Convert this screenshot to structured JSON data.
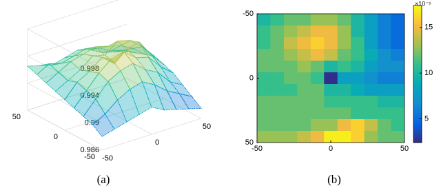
{
  "chart_data": [
    {
      "type": "surface",
      "caption": "(a)",
      "xlim": [
        -50,
        50
      ],
      "xticks": [
        -50,
        0,
        50
      ],
      "ylim": [
        -50,
        50
      ],
      "yticks": [
        -50,
        0,
        50
      ],
      "zlim": [
        0.986,
        0.998
      ],
      "zticks": [
        0.986,
        0.99,
        0.994,
        0.998
      ],
      "grid": true,
      "z": [
        [
          0.988,
          0.9885,
          0.989,
          0.9895,
          0.99,
          0.989,
          0.9885,
          0.988,
          0.9875
        ],
        [
          0.989,
          0.99,
          0.9915,
          0.9925,
          0.993,
          0.992,
          0.9905,
          0.9895,
          0.9885
        ],
        [
          0.9895,
          0.9915,
          0.9935,
          0.9945,
          0.995,
          0.9935,
          0.9925,
          0.9905,
          0.9895
        ],
        [
          0.99,
          0.992,
          0.994,
          0.9955,
          0.996,
          0.9945,
          0.994,
          0.992,
          0.9905
        ],
        [
          0.9905,
          0.9925,
          0.9935,
          0.995,
          0.9935,
          0.995,
          0.9955,
          0.993,
          0.991
        ],
        [
          0.991,
          0.992,
          0.993,
          0.9945,
          0.994,
          0.9955,
          0.995,
          0.9935,
          0.9915
        ],
        [
          0.9915,
          0.9925,
          0.9935,
          0.994,
          0.9945,
          0.994,
          0.9935,
          0.9925,
          0.991
        ],
        [
          0.992,
          0.993,
          0.9925,
          0.993,
          0.9935,
          0.993,
          0.992,
          0.9915,
          0.9905
        ],
        [
          0.9925,
          0.992,
          0.9915,
          0.992,
          0.9925,
          0.992,
          0.991,
          0.9905,
          0.99
        ]
      ]
    },
    {
      "type": "heatmap",
      "caption": "(b)",
      "xlim": [
        -50,
        50
      ],
      "xticks": [
        -50,
        0,
        50
      ],
      "ylim": [
        -50,
        50
      ],
      "yticks": [
        -50,
        0,
        50
      ],
      "clim": [
        2.4,
        17.4
      ],
      "cticks": [
        5,
        10,
        15
      ],
      "colorbar_exponent": "×10⁻⁵",
      "z": [
        [
          10,
          11,
          12,
          12,
          13,
          13,
          12,
          10,
          8,
          6,
          5
        ],
        [
          11,
          12,
          13,
          14,
          15,
          15,
          13,
          10,
          8,
          6,
          5
        ],
        [
          11,
          12,
          14,
          15,
          16,
          15,
          13,
          11,
          8,
          6,
          5
        ],
        [
          12,
          12,
          13,
          14,
          15,
          14,
          12,
          11,
          9,
          7,
          6
        ],
        [
          12,
          12,
          12,
          13,
          12,
          10,
          11,
          10,
          8,
          7,
          7
        ],
        [
          11,
          11,
          12,
          12,
          11,
          2.5,
          8,
          8,
          7,
          6,
          6
        ],
        [
          11,
          11,
          11,
          12,
          12,
          10,
          10,
          9,
          8,
          8,
          8
        ],
        [
          12,
          12,
          12,
          12,
          12,
          11,
          11,
          11,
          11,
          10,
          10
        ],
        [
          12,
          12,
          12,
          12,
          12,
          12,
          12,
          11,
          11,
          11,
          11
        ],
        [
          12,
          12,
          12,
          12,
          13,
          13,
          15,
          16,
          14,
          12,
          11
        ],
        [
          13,
          13,
          13,
          14,
          15,
          17,
          17,
          16,
          13,
          12,
          12
        ]
      ]
    }
  ]
}
